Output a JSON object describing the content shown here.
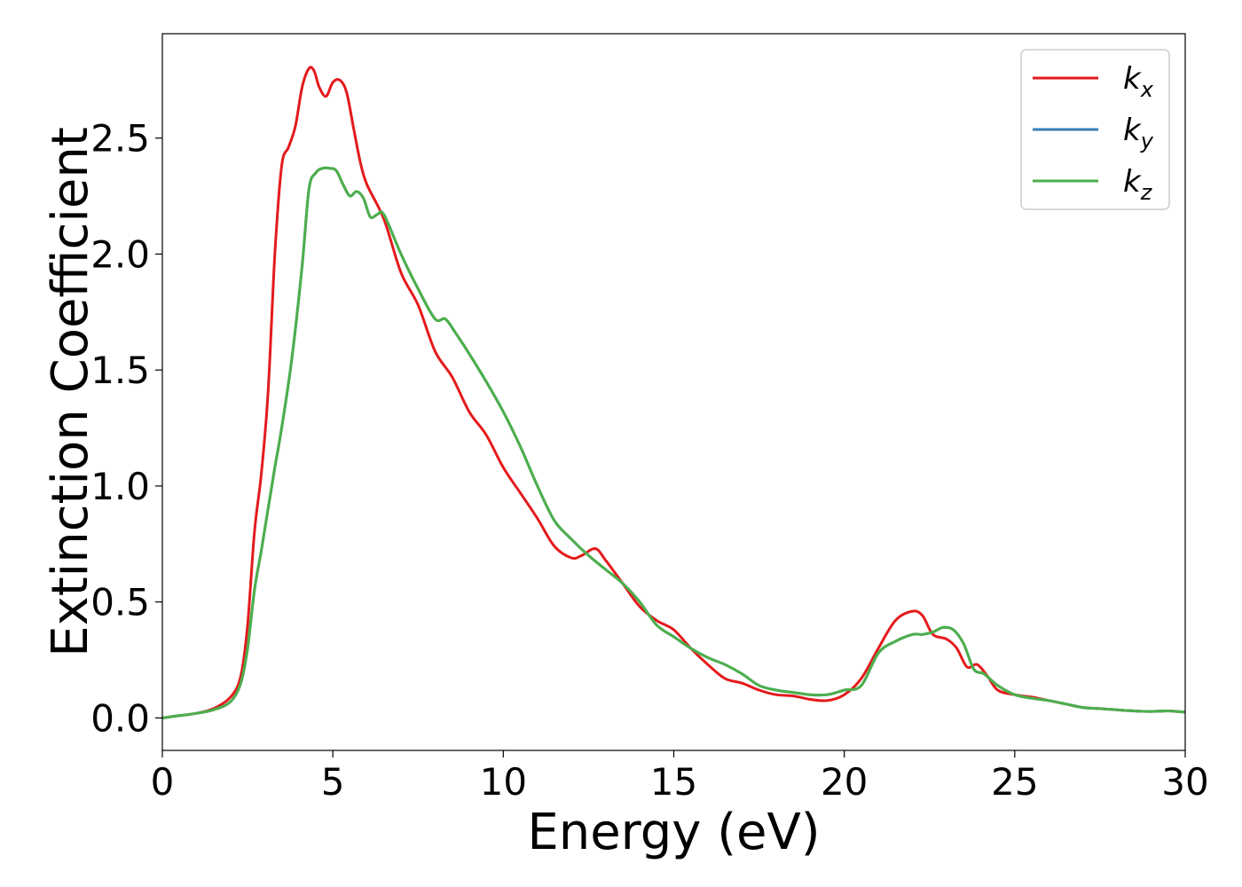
{
  "chart_data": {
    "type": "line",
    "title": "",
    "xlabel": "Energy (eV)",
    "ylabel": "Extinction Coefficient",
    "xlim": [
      0,
      30
    ],
    "ylim": [
      -0.14,
      2.95
    ],
    "xticks": [
      0,
      5,
      10,
      15,
      20,
      25,
      30
    ],
    "xtick_labels": [
      "0",
      "5",
      "10",
      "15",
      "20",
      "25",
      "30"
    ],
    "yticks": [
      0.0,
      0.5,
      1.0,
      1.5,
      2.0,
      2.5
    ],
    "ytick_labels": [
      "0.0",
      "0.5",
      "1.0",
      "1.5",
      "2.0",
      "2.5"
    ],
    "grid": false,
    "legend_position": "top-right",
    "series": [
      {
        "name": "k_x",
        "legend_base": "k",
        "legend_sub": "x",
        "color": "#e41a1c",
        "x": [
          0,
          0.5,
          1.0,
          1.5,
          2.0,
          2.3,
          2.5,
          2.7,
          2.9,
          3.1,
          3.3,
          3.5,
          3.7,
          3.9,
          4.1,
          4.3,
          4.45,
          4.6,
          4.8,
          5.0,
          5.2,
          5.4,
          5.6,
          5.8,
          6.0,
          6.5,
          7.0,
          7.5,
          8.0,
          8.5,
          9.0,
          9.5,
          10.0,
          10.5,
          11.0,
          11.5,
          12.0,
          12.3,
          12.7,
          13.0,
          13.5,
          14.0,
          14.5,
          15.0,
          15.5,
          16.0,
          16.5,
          17.0,
          17.5,
          18.0,
          18.5,
          19.0,
          19.5,
          20.0,
          20.5,
          21.0,
          21.5,
          22.0,
          22.3,
          22.6,
          23.0,
          23.3,
          23.6,
          23.9,
          24.2,
          24.5,
          25.0,
          25.5,
          26.0,
          26.5,
          27.0,
          27.5,
          28.0,
          28.5,
          29.0,
          29.5,
          30.0
        ],
        "y": [
          0.0,
          0.01,
          0.02,
          0.04,
          0.09,
          0.18,
          0.4,
          0.8,
          1.05,
          1.4,
          2.0,
          2.38,
          2.46,
          2.55,
          2.72,
          2.8,
          2.79,
          2.72,
          2.68,
          2.74,
          2.75,
          2.7,
          2.55,
          2.4,
          2.3,
          2.15,
          1.92,
          1.78,
          1.58,
          1.47,
          1.32,
          1.22,
          1.08,
          0.97,
          0.86,
          0.74,
          0.69,
          0.7,
          0.73,
          0.68,
          0.58,
          0.48,
          0.42,
          0.38,
          0.3,
          0.23,
          0.17,
          0.15,
          0.12,
          0.1,
          0.095,
          0.08,
          0.075,
          0.1,
          0.17,
          0.3,
          0.42,
          0.46,
          0.44,
          0.36,
          0.34,
          0.3,
          0.22,
          0.23,
          0.18,
          0.12,
          0.1,
          0.09,
          0.075,
          0.06,
          0.045,
          0.04,
          0.035,
          0.03,
          0.028,
          0.03,
          0.025
        ]
      },
      {
        "name": "k_y",
        "legend_base": "k",
        "legend_sub": "y",
        "color": "#377eb8",
        "x": [
          0,
          0.5,
          1.0,
          1.5,
          2.0,
          2.3,
          2.5,
          2.7,
          2.9,
          3.1,
          3.3,
          3.5,
          3.8,
          4.1,
          4.3,
          4.5,
          4.7,
          4.9,
          5.1,
          5.3,
          5.5,
          5.7,
          5.9,
          6.1,
          6.3,
          6.5,
          7.0,
          7.5,
          8.0,
          8.3,
          8.6,
          9.0,
          9.5,
          10.0,
          10.5,
          11.0,
          11.5,
          12.0,
          12.5,
          13.0,
          13.5,
          14.0,
          14.5,
          15.0,
          15.5,
          16.0,
          16.5,
          17.0,
          17.5,
          18.0,
          18.5,
          19.0,
          19.5,
          20.0,
          20.5,
          21.0,
          21.5,
          22.0,
          22.3,
          22.6,
          22.9,
          23.2,
          23.5,
          23.8,
          24.1,
          24.5,
          25.0,
          25.5,
          26.0,
          26.5,
          27.0,
          27.5,
          28.0,
          28.5,
          29.0,
          29.5,
          30.0
        ],
        "y": [
          0.0,
          0.01,
          0.02,
          0.035,
          0.07,
          0.15,
          0.3,
          0.55,
          0.72,
          0.9,
          1.08,
          1.25,
          1.55,
          1.95,
          2.28,
          2.35,
          2.37,
          2.37,
          2.36,
          2.3,
          2.25,
          2.27,
          2.24,
          2.16,
          2.17,
          2.17,
          2.0,
          1.85,
          1.72,
          1.72,
          1.66,
          1.57,
          1.45,
          1.32,
          1.17,
          1.0,
          0.85,
          0.77,
          0.7,
          0.64,
          0.58,
          0.5,
          0.4,
          0.35,
          0.3,
          0.26,
          0.23,
          0.19,
          0.14,
          0.12,
          0.11,
          0.1,
          0.1,
          0.12,
          0.14,
          0.28,
          0.33,
          0.36,
          0.36,
          0.37,
          0.39,
          0.38,
          0.32,
          0.21,
          0.19,
          0.14,
          0.1,
          0.085,
          0.075,
          0.06,
          0.045,
          0.04,
          0.035,
          0.03,
          0.028,
          0.03,
          0.025
        ]
      },
      {
        "name": "k_z",
        "legend_base": "k",
        "legend_sub": "z",
        "color": "#4daf4a",
        "x": [
          0,
          0.5,
          1.0,
          1.5,
          2.0,
          2.3,
          2.5,
          2.7,
          2.9,
          3.1,
          3.3,
          3.5,
          3.8,
          4.1,
          4.3,
          4.5,
          4.7,
          4.9,
          5.1,
          5.3,
          5.5,
          5.7,
          5.9,
          6.1,
          6.3,
          6.5,
          7.0,
          7.5,
          8.0,
          8.3,
          8.6,
          9.0,
          9.5,
          10.0,
          10.5,
          11.0,
          11.5,
          12.0,
          12.5,
          13.0,
          13.5,
          14.0,
          14.5,
          15.0,
          15.5,
          16.0,
          16.5,
          17.0,
          17.5,
          18.0,
          18.5,
          19.0,
          19.5,
          20.0,
          20.5,
          21.0,
          21.5,
          22.0,
          22.3,
          22.6,
          22.9,
          23.2,
          23.5,
          23.8,
          24.1,
          24.5,
          25.0,
          25.5,
          26.0,
          26.5,
          27.0,
          27.5,
          28.0,
          28.5,
          29.0,
          29.5,
          30.0
        ],
        "y": [
          0.0,
          0.01,
          0.02,
          0.035,
          0.07,
          0.15,
          0.3,
          0.55,
          0.72,
          0.9,
          1.08,
          1.25,
          1.55,
          1.95,
          2.28,
          2.35,
          2.37,
          2.37,
          2.36,
          2.3,
          2.25,
          2.27,
          2.24,
          2.16,
          2.17,
          2.17,
          2.0,
          1.85,
          1.72,
          1.72,
          1.66,
          1.57,
          1.45,
          1.32,
          1.17,
          1.0,
          0.85,
          0.77,
          0.7,
          0.64,
          0.58,
          0.5,
          0.4,
          0.35,
          0.3,
          0.26,
          0.23,
          0.19,
          0.14,
          0.12,
          0.11,
          0.1,
          0.1,
          0.12,
          0.14,
          0.28,
          0.33,
          0.36,
          0.36,
          0.37,
          0.39,
          0.38,
          0.32,
          0.21,
          0.19,
          0.14,
          0.1,
          0.085,
          0.075,
          0.06,
          0.045,
          0.04,
          0.035,
          0.03,
          0.028,
          0.03,
          0.025
        ]
      }
    ]
  }
}
